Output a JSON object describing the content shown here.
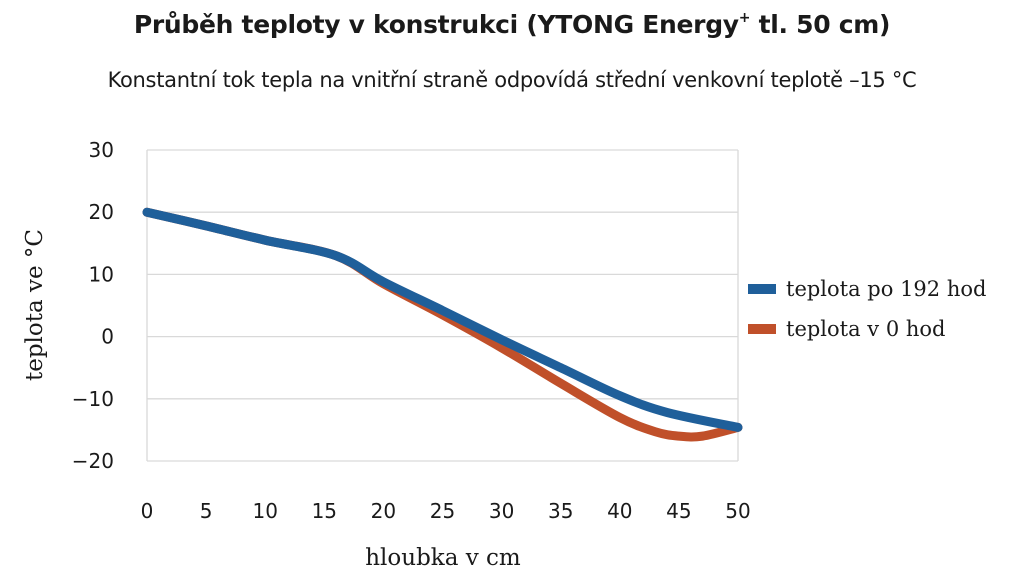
{
  "chart_data": {
    "type": "line",
    "title_main": "Průběh teploty v konstrukci (YTONG Energy",
    "title_sup": "+",
    "title_tail": " tl. 50 cm)",
    "subtitle": "Konstantní tok tepla na vnitřní straně odpovídá střední venkovní teplotě –15 °C",
    "xlabel": "hloubka v cm",
    "ylabel": "teplota ve °C",
    "xlim": [
      0,
      50
    ],
    "ylim": [
      -20,
      30
    ],
    "xticks": [
      0,
      5,
      10,
      15,
      20,
      25,
      30,
      35,
      40,
      45,
      50
    ],
    "yticks": [
      {
        "value": 30,
        "label": "30"
      },
      {
        "value": 20,
        "label": "20"
      },
      {
        "value": 10,
        "label": "10"
      },
      {
        "value": 0,
        "label": "0"
      },
      {
        "value": -10,
        "label": "−10"
      },
      {
        "value": -20,
        "label": "−20"
      }
    ],
    "grid": true,
    "legend_position": "right",
    "series": [
      {
        "name": "teplota v 0 hod",
        "color": "#c0502a",
        "x": [
          0,
          5,
          10,
          16,
          20,
          25,
          30,
          35,
          40,
          43,
          45,
          47,
          50
        ],
        "y": [
          20,
          17.8,
          15.5,
          13,
          8.5,
          3.5,
          -1.8,
          -7.5,
          -13,
          -15.3,
          -16,
          -16,
          -14.6
        ]
      },
      {
        "name": "teplota po 192 hod",
        "color": "#1f5f9a",
        "x": [
          0,
          5,
          10,
          16,
          20,
          25,
          30,
          35,
          40,
          44,
          50
        ],
        "y": [
          20,
          17.8,
          15.5,
          13,
          8.8,
          4.2,
          -0.5,
          -5,
          -9.5,
          -12.2,
          -14.6
        ]
      }
    ],
    "legend": [
      {
        "series": 1,
        "label": "teplota po 192 hod"
      },
      {
        "series": 0,
        "label": "teplota v 0 hod"
      }
    ]
  }
}
